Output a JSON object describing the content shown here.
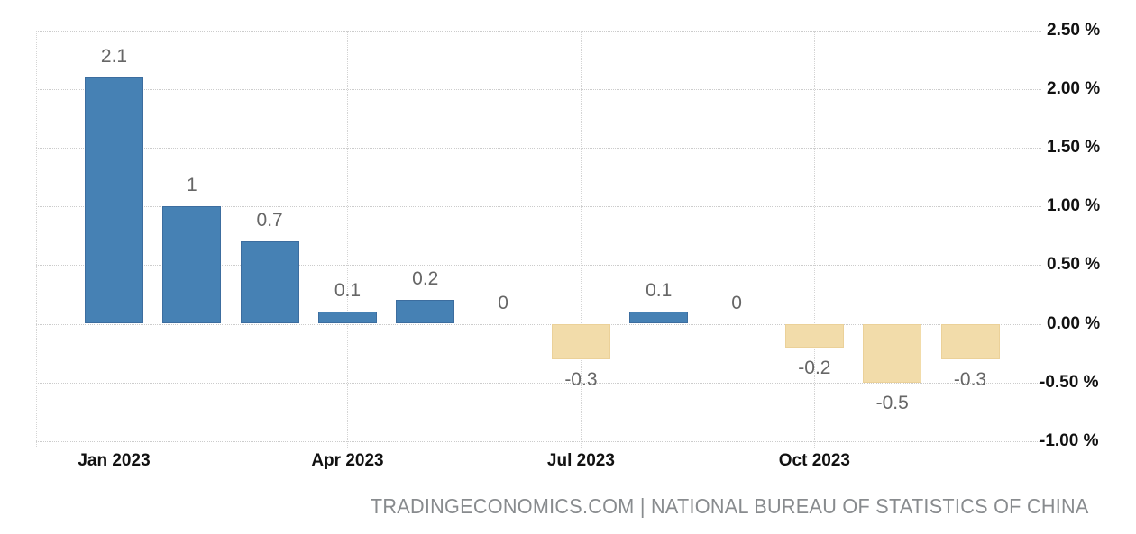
{
  "chart_data": {
    "type": "bar",
    "categories": [
      "Jan 2023",
      "Feb 2023",
      "Mar 2023",
      "Apr 2023",
      "May 2023",
      "Jun 2023",
      "Jul 2023",
      "Aug 2023",
      "Sep 2023",
      "Oct 2023",
      "Nov 2023",
      "Dec 2023"
    ],
    "values": [
      2.1,
      1,
      0.7,
      0.1,
      0.2,
      0,
      -0.3,
      0.1,
      0,
      -0.2,
      -0.5,
      -0.3
    ],
    "value_labels": [
      "2.1",
      "1",
      "0.7",
      "0.1",
      "0.2",
      "0",
      "-0.3",
      "0.1",
      "0",
      "-0.2",
      "-0.5",
      "-0.3"
    ],
    "x_axis": {
      "tick_labels": [
        "Jan 2023",
        "Apr 2023",
        "Jul 2023",
        "Oct 2023"
      ],
      "tick_category_indexes": [
        0,
        3,
        6,
        9
      ]
    },
    "y_axis": {
      "side": "right",
      "unit": "%",
      "tick_values": [
        2.5,
        2.0,
        1.5,
        1.0,
        0.5,
        0.0,
        -0.5,
        -1.0
      ],
      "tick_labels": [
        "2.50 %",
        "2.00 %",
        "1.50 %",
        "1.00 %",
        "0.50 %",
        "0.00 %",
        "-0.50 %",
        "-1.00 %"
      ],
      "range": [
        -1.0,
        2.5
      ]
    },
    "grid": {
      "horizontal": "dotted",
      "vertical": "dotted"
    },
    "legend": false,
    "colors": {
      "positive_bar": "#4681b4",
      "positive_bar_border": "#3c6d9f",
      "negative_bar": "#f2dcaa",
      "negative_bar_border": "#ebd199",
      "value_label_text": "#666666",
      "axis_label_text": "#111111",
      "gridline": "#cccccc",
      "background": "#ffffff"
    }
  },
  "attribution": {
    "text": "TRADINGECONOMICS.COM | NATIONAL BUREAU OF STATISTICS OF CHINA"
  }
}
